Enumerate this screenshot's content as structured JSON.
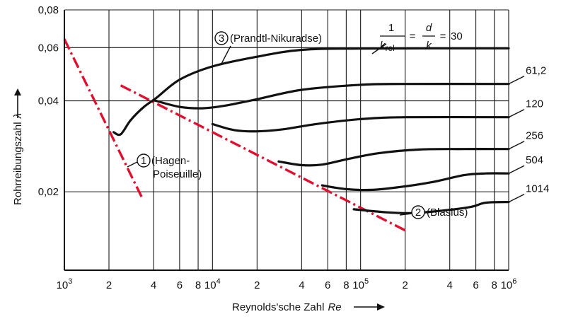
{
  "chart_data": {
    "type": "line",
    "xscale": "log",
    "yscale": "log",
    "xlim": [
      1000,
      1000000
    ],
    "ylim": [
      0.011,
      0.08
    ],
    "xlabel": "Reynolds'sche Zahl",
    "xlabel_symbol": "Re",
    "ylabel": "Rohrreibungszahl",
    "ylabel_symbol": "λ",
    "xticks": [
      {
        "value": 1000,
        "mant": "10",
        "exp": "3"
      },
      {
        "value": 2000,
        "mant": "2",
        "exp": ""
      },
      {
        "value": 4000,
        "mant": "4",
        "exp": ""
      },
      {
        "value": 6000,
        "mant": "6",
        "exp": ""
      },
      {
        "value": 8000,
        "mant": "8",
        "exp": ""
      },
      {
        "value": 10000,
        "mant": "10",
        "exp": "4"
      },
      {
        "value": 20000,
        "mant": "2",
        "exp": ""
      },
      {
        "value": 40000,
        "mant": "4",
        "exp": ""
      },
      {
        "value": 60000,
        "mant": "6",
        "exp": ""
      },
      {
        "value": 80000,
        "mant": "8",
        "exp": ""
      },
      {
        "value": 100000,
        "mant": "10",
        "exp": "5"
      },
      {
        "value": 200000,
        "mant": "2",
        "exp": ""
      },
      {
        "value": 400000,
        "mant": "4",
        "exp": ""
      },
      {
        "value": 600000,
        "mant": "6",
        "exp": ""
      },
      {
        "value": 800000,
        "mant": "8",
        "exp": ""
      },
      {
        "value": 1000000,
        "mant": "10",
        "exp": "6"
      }
    ],
    "yticks": [
      {
        "value": 0.02,
        "label": "0,02"
      },
      {
        "value": 0.04,
        "label": "0,04"
      },
      {
        "value": 0.06,
        "label": "0,06"
      },
      {
        "value": 0.08,
        "label": "0,08"
      }
    ],
    "grid": true,
    "series": [
      {
        "name": "30",
        "points": [
          [
            2150,
            0.0315
          ],
          [
            2400,
            0.031
          ],
          [
            2800,
            0.0345
          ],
          [
            3400,
            0.038
          ],
          [
            4200,
            0.041
          ],
          [
            6000,
            0.047
          ],
          [
            10000,
            0.052
          ],
          [
            20000,
            0.056
          ],
          [
            40000,
            0.059
          ],
          [
            100000,
            0.0596
          ],
          [
            1000000,
            0.0597
          ]
        ]
      },
      {
        "name": "61,2",
        "points": [
          [
            4000,
            0.0402
          ],
          [
            6000,
            0.0382
          ],
          [
            8500,
            0.0378
          ],
          [
            12000,
            0.0385
          ],
          [
            20000,
            0.0405
          ],
          [
            40000,
            0.0435
          ],
          [
            100000,
            0.0452
          ],
          [
            200000,
            0.0455
          ],
          [
            1000000,
            0.0455
          ]
        ]
      },
      {
        "name": "120",
        "points": [
          [
            10000,
            0.0335
          ],
          [
            14000,
            0.032
          ],
          [
            20000,
            0.0317
          ],
          [
            30000,
            0.0322
          ],
          [
            50000,
            0.0335
          ],
          [
            100000,
            0.0348
          ],
          [
            200000,
            0.0353
          ],
          [
            1000000,
            0.0353
          ]
        ]
      },
      {
        "name": "256",
        "points": [
          [
            28000,
            0.0252
          ],
          [
            40000,
            0.0245
          ],
          [
            55000,
            0.0246
          ],
          [
            80000,
            0.0256
          ],
          [
            130000,
            0.0268
          ],
          [
            250000,
            0.0276
          ],
          [
            500000,
            0.0277
          ],
          [
            1000000,
            0.0277
          ]
        ]
      },
      {
        "name": "504",
        "points": [
          [
            55000,
            0.021
          ],
          [
            80000,
            0.0204
          ],
          [
            120000,
            0.0203
          ],
          [
            180000,
            0.0207
          ],
          [
            300000,
            0.0215
          ],
          [
            500000,
            0.0227
          ],
          [
            700000,
            0.023
          ],
          [
            1000000,
            0.023
          ]
        ]
      },
      {
        "name": "1014",
        "points": [
          [
            90000,
            0.0175
          ],
          [
            150000,
            0.0171
          ],
          [
            220000,
            0.017
          ],
          [
            350000,
            0.0173
          ],
          [
            550000,
            0.0178
          ],
          [
            700000,
            0.0184
          ],
          [
            1000000,
            0.0185
          ]
        ]
      }
    ],
    "reference_lines": [
      {
        "name": "Hagen-Poiseuille",
        "number": "1",
        "label_line1": "(Hagen-",
        "label_line2": "Poiseuille)",
        "points": [
          [
            1000,
            0.064
          ],
          [
            3400,
            0.0188
          ]
        ]
      },
      {
        "name": "Blasius",
        "number": "2",
        "label": "(Blasius)",
        "points": [
          [
            2400,
            0.045
          ],
          [
            200000,
            0.0149
          ]
        ]
      }
    ],
    "annotations": {
      "prandtl_number": "3",
      "prandtl_text": "(Prandtl-Nikuradse)",
      "equation": {
        "num1": "1",
        "k": "k",
        "sub": "rel",
        "eq1": "=",
        "num2": "d",
        "den2": "k",
        "eq2": "=",
        "value": "30"
      }
    }
  }
}
